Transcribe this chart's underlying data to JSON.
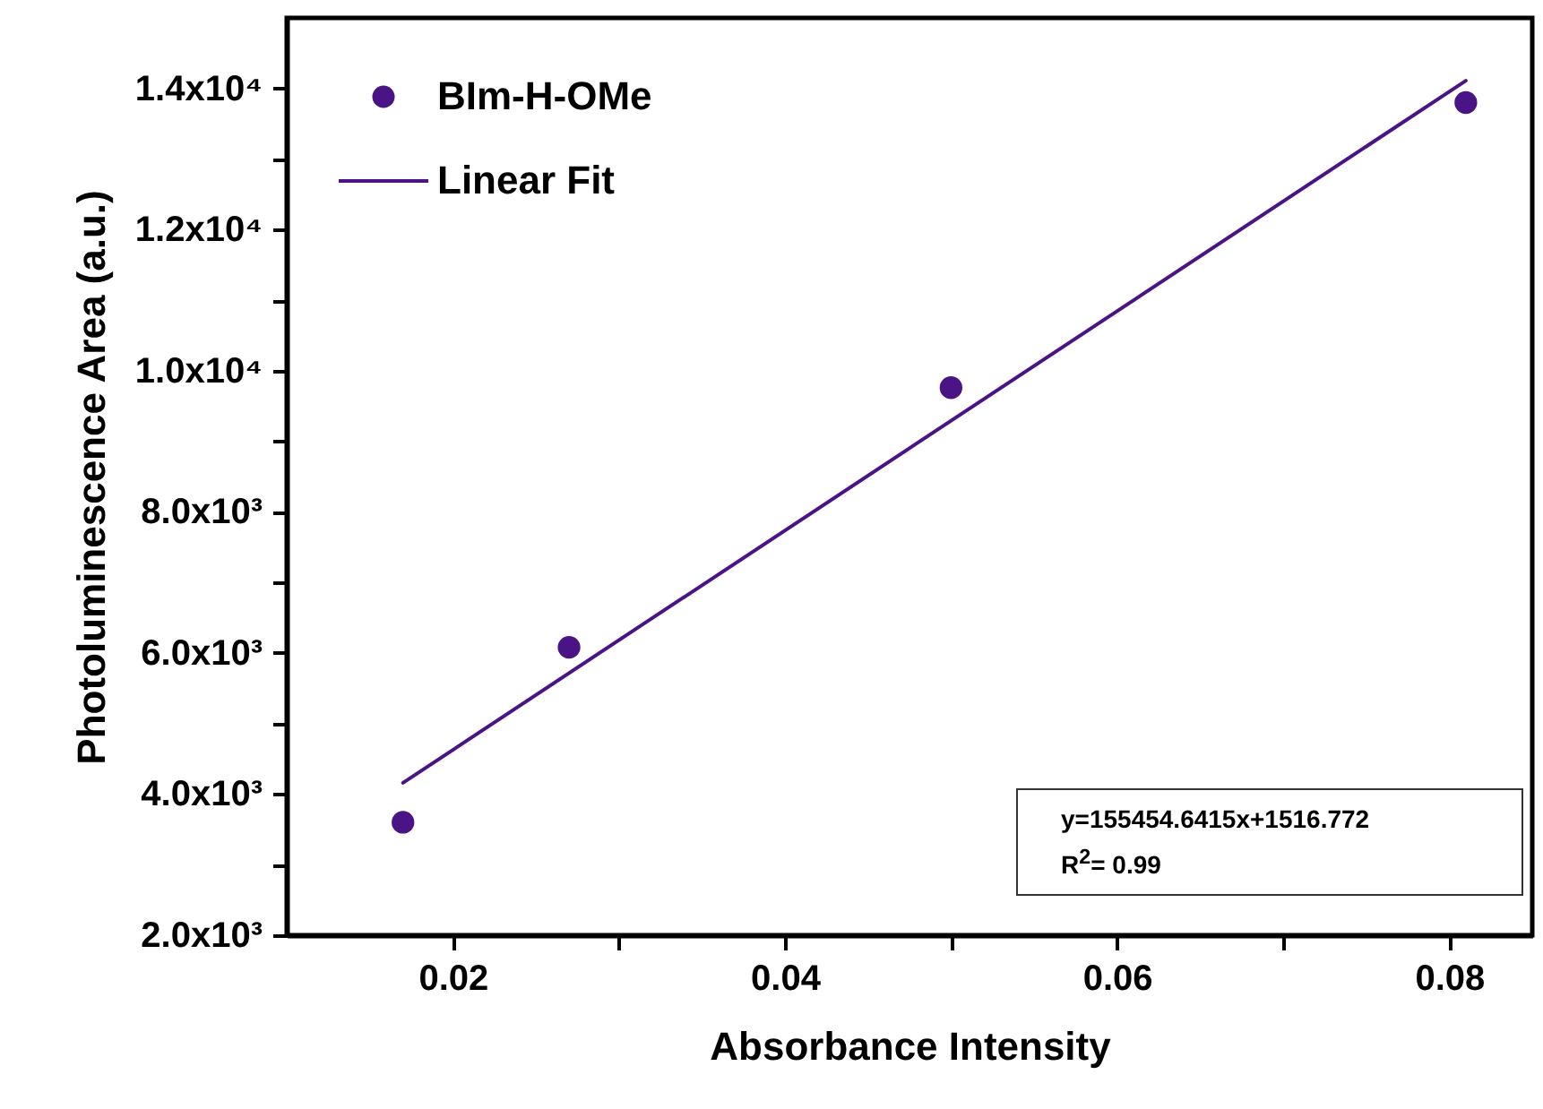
{
  "chart_data": {
    "type": "scatter",
    "xlabel": "Absorbance Intensity",
    "ylabel": "Photoluminescence Area (a.u.)",
    "xlim": [
      0.01,
      0.085
    ],
    "xticks": [
      0.02,
      {
        "value": 0.03,
        "label": null
      },
      0.04,
      {
        "value": 0.05,
        "label": null
      },
      0.06,
      {
        "value": 0.07,
        "label": null
      },
      0.08
    ],
    "ylim": [
      2000,
      15000
    ],
    "yticks": [
      {
        "value": 2000,
        "label": "2.0x10³"
      },
      {
        "value": 3000,
        "label": null
      },
      {
        "value": 4000,
        "label": "4.0x10³"
      },
      {
        "value": 5000,
        "label": null
      },
      {
        "value": 6000,
        "label": "6.0x10³"
      },
      {
        "value": 7000,
        "label": null
      },
      {
        "value": 8000,
        "label": "8.0x10³"
      },
      {
        "value": 9000,
        "label": null
      },
      {
        "value": 10000,
        "label": "1.0x10⁴"
      },
      {
        "value": 11000,
        "label": null
      },
      {
        "value": 12000,
        "label": "1.2x10⁴"
      },
      {
        "value": 13000,
        "label": null
      },
      {
        "value": 14000,
        "label": "1.4x10⁴"
      }
    ],
    "grid": false,
    "legend": "top left",
    "series": [
      {
        "name": "BIm-H-OMe",
        "marker": "circle",
        "color": "#4a1486",
        "x": [
          0.017,
          0.027,
          0.05,
          0.081
        ],
        "values": [
          3600,
          6080,
          9760,
          13800
        ]
      },
      {
        "name": "Linear Fit",
        "type": "line",
        "color": "#4a1486",
        "x": [
          0.017,
          0.081
        ],
        "values": [
          4160,
          14110
        ]
      }
    ],
    "annotations": [
      "y=155454.6415x+1516.772",
      "R$^{2}$= 0.99"
    ]
  }
}
